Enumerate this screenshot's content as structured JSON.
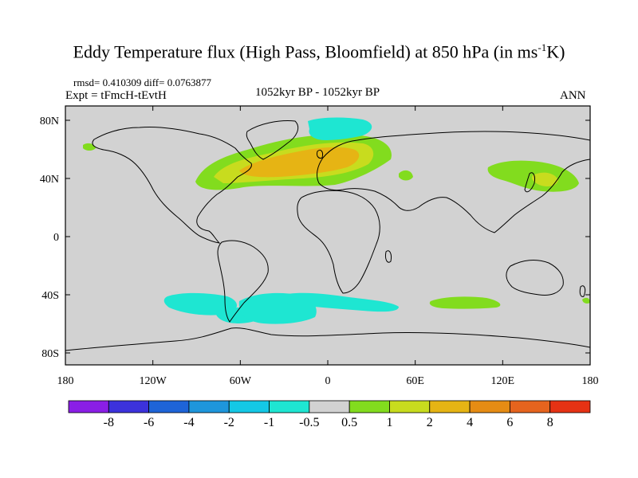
{
  "title": {
    "prefix": "Eddy Temperature flux (High Pass, Bloomfield) at 850 hPa (in ms",
    "sup": "-1",
    "suffix": "K)"
  },
  "stats": "rmsd= 0.410309 diff= 0.0763877",
  "experiment": "Expt = tFmcH-tEvtH",
  "period": "1052kyr BP - 1052kyr BP",
  "season": "ANN",
  "lat_ticks": [
    "80N",
    "40N",
    "0",
    "40S",
    "80S"
  ],
  "lon_ticks": [
    "180",
    "120W",
    "60W",
    "0",
    "60E",
    "120E",
    "180"
  ],
  "colorbar": {
    "labels": [
      "-8",
      "-6",
      "-4",
      "-2",
      "-1",
      "-0.5",
      "0.5",
      "1",
      "2",
      "4",
      "6",
      "8"
    ],
    "colors": [
      "#8a1ee6",
      "#3c32dc",
      "#1e64d8",
      "#1e96dc",
      "#14c8e6",
      "#1ee6d2",
      "#d2d2d2",
      "#82dc1e",
      "#c8dc1e",
      "#e6b414",
      "#e68c14",
      "#e6641e",
      "#e63214"
    ]
  },
  "colors": {
    "land_sea_background": "#d2d2d2",
    "coastline": "#000000"
  }
}
